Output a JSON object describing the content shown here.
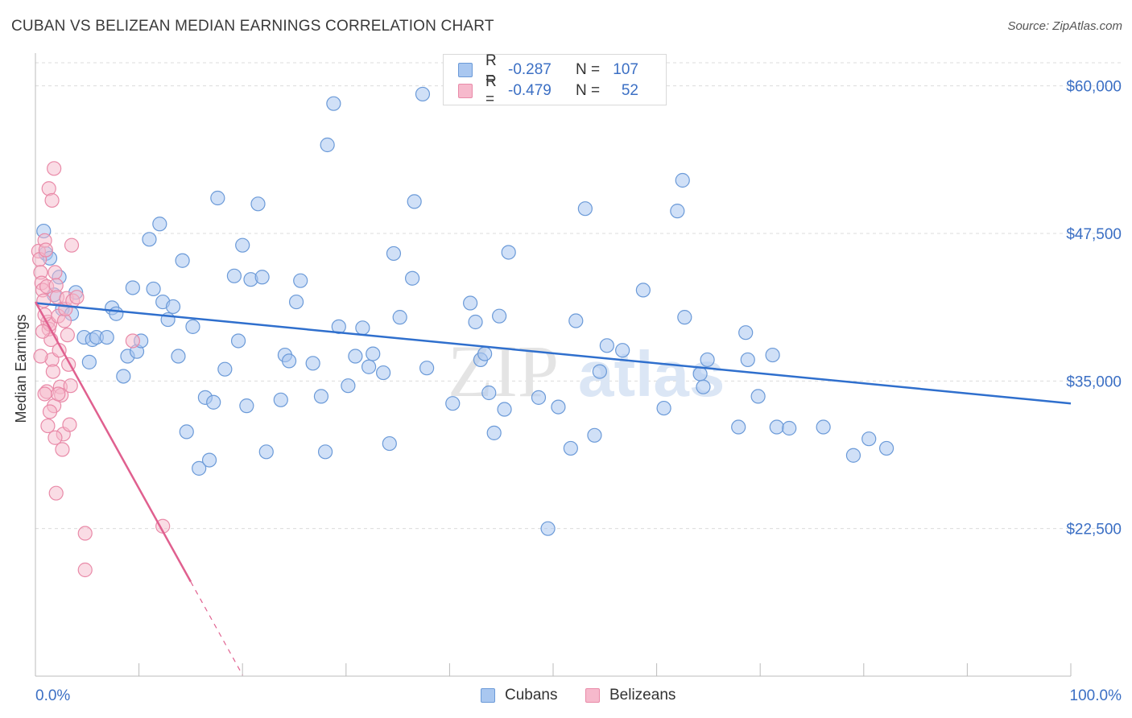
{
  "header": {
    "title": "CUBAN VS BELIZEAN MEDIAN EARNINGS CORRELATION CHART",
    "source": "Source: ZipAtlas.com"
  },
  "legend": {
    "series": [
      {
        "name": "Cubans",
        "r_label": "R =",
        "r_value": "-0.287",
        "n_label": "N =",
        "n_value": "107"
      },
      {
        "name": "Belizeans",
        "r_label": "R =",
        "r_value": "-0.479",
        "n_label": "N =",
        "n_value": "52"
      }
    ]
  },
  "watermark": {
    "zip": "ZIP",
    "atlas": "atlas"
  },
  "colors": {
    "cubans_fill": "#a9c7f0",
    "cubans_stroke": "#6b9ad8",
    "cubans_line": "#2f6fcd",
    "belizeans_fill": "#f6b9cc",
    "belizeans_stroke": "#e98aa8",
    "belizeans_line": "#e0608f",
    "axis_label": "#3b6fc4",
    "grid": "#dcdcdc"
  },
  "chart_data": {
    "type": "scatter",
    "title": "CUBAN VS BELIZEAN MEDIAN EARNINGS CORRELATION CHART",
    "xlabel": "",
    "ylabel": "Median Earnings",
    "xlim": [
      0,
      100
    ],
    "ylim": [
      10000,
      62500
    ],
    "x_tick_labels": [
      "0.0%",
      "100.0%"
    ],
    "y_ticks": [
      22500,
      35000,
      47500,
      60000
    ],
    "y_tick_labels": [
      "$22,500",
      "$35,000",
      "$47,500",
      "$60,000"
    ],
    "grid": true,
    "series": [
      {
        "name": "Cubans",
        "trend": {
          "x": [
            0,
            100
          ],
          "y": [
            41600,
            33100
          ]
        },
        "points": [
          [
            0.8,
            47700
          ],
          [
            1.0,
            45800
          ],
          [
            1.4,
            45400
          ],
          [
            2.3,
            43800
          ],
          [
            1.8,
            42300
          ],
          [
            3.9,
            42500
          ],
          [
            2.6,
            41100
          ],
          [
            3.5,
            40700
          ],
          [
            4.7,
            38700
          ],
          [
            5.5,
            38500
          ],
          [
            5.9,
            38700
          ],
          [
            5.2,
            36600
          ],
          [
            6.9,
            38700
          ],
          [
            7.4,
            41200
          ],
          [
            7.8,
            40700
          ],
          [
            8.5,
            35400
          ],
          [
            8.9,
            37100
          ],
          [
            9.4,
            42900
          ],
          [
            9.8,
            37500
          ],
          [
            10.2,
            38400
          ],
          [
            11.0,
            47000
          ],
          [
            12.0,
            48300
          ],
          [
            12.3,
            41700
          ],
          [
            11.4,
            42800
          ],
          [
            12.8,
            40200
          ],
          [
            13.3,
            41300
          ],
          [
            13.8,
            37100
          ],
          [
            14.2,
            45200
          ],
          [
            14.6,
            30700
          ],
          [
            15.2,
            39600
          ],
          [
            15.8,
            27600
          ],
          [
            16.4,
            33600
          ],
          [
            16.8,
            28300
          ],
          [
            17.2,
            33200
          ],
          [
            17.6,
            50500
          ],
          [
            18.3,
            36000
          ],
          [
            19.2,
            43900
          ],
          [
            19.6,
            38400
          ],
          [
            20.0,
            46500
          ],
          [
            20.4,
            32900
          ],
          [
            20.8,
            43600
          ],
          [
            21.5,
            50000
          ],
          [
            21.9,
            43800
          ],
          [
            22.3,
            29000
          ],
          [
            23.7,
            33400
          ],
          [
            24.1,
            37200
          ],
          [
            24.5,
            36700
          ],
          [
            25.2,
            41700
          ],
          [
            25.6,
            43500
          ],
          [
            26.8,
            36500
          ],
          [
            27.6,
            33700
          ],
          [
            28.0,
            29000
          ],
          [
            28.2,
            55000
          ],
          [
            28.8,
            58500
          ],
          [
            29.3,
            39600
          ],
          [
            30.2,
            34600
          ],
          [
            30.9,
            37100
          ],
          [
            31.6,
            39500
          ],
          [
            32.2,
            36200
          ],
          [
            32.6,
            37300
          ],
          [
            33.6,
            35700
          ],
          [
            34.2,
            29700
          ],
          [
            34.6,
            45800
          ],
          [
            35.2,
            40400
          ],
          [
            36.4,
            43700
          ],
          [
            36.6,
            50200
          ],
          [
            37.4,
            59300
          ],
          [
            37.8,
            36100
          ],
          [
            40.3,
            33100
          ],
          [
            42.0,
            41600
          ],
          [
            42.5,
            40000
          ],
          [
            43.0,
            36800
          ],
          [
            43.4,
            37300
          ],
          [
            43.8,
            34000
          ],
          [
            44.3,
            30600
          ],
          [
            44.8,
            40500
          ],
          [
            45.3,
            32600
          ],
          [
            45.7,
            45900
          ],
          [
            48.6,
            33600
          ],
          [
            49.5,
            22500
          ],
          [
            50.5,
            32800
          ],
          [
            51.7,
            29300
          ],
          [
            52.2,
            40100
          ],
          [
            53.1,
            49600
          ],
          [
            54.0,
            30400
          ],
          [
            54.5,
            35800
          ],
          [
            55.2,
            38000
          ],
          [
            56.7,
            37600
          ],
          [
            58.7,
            42700
          ],
          [
            60.7,
            32700
          ],
          [
            62.0,
            49400
          ],
          [
            62.5,
            52000
          ],
          [
            62.7,
            40400
          ],
          [
            64.2,
            35600
          ],
          [
            64.5,
            34500
          ],
          [
            64.9,
            36800
          ],
          [
            67.9,
            31100
          ],
          [
            68.6,
            39100
          ],
          [
            68.8,
            36800
          ],
          [
            69.8,
            33700
          ],
          [
            71.2,
            37200
          ],
          [
            71.6,
            31100
          ],
          [
            76.1,
            31100
          ],
          [
            80.5,
            30100
          ],
          [
            79.0,
            28700
          ],
          [
            82.2,
            29300
          ],
          [
            72.8,
            31000
          ]
        ]
      },
      {
        "name": "Belizeans",
        "trend": {
          "x": [
            0,
            15
          ],
          "y": [
            41700,
            18000
          ]
        },
        "trend_dashed": {
          "x": [
            15,
            20
          ],
          "y": [
            18000,
            10100
          ]
        },
        "points": [
          [
            0.3,
            46000
          ],
          [
            0.4,
            45300
          ],
          [
            0.5,
            44200
          ],
          [
            0.6,
            43300
          ],
          [
            0.7,
            42700
          ],
          [
            0.8,
            41800
          ],
          [
            0.9,
            46900
          ],
          [
            1.0,
            46100
          ],
          [
            1.1,
            43000
          ],
          [
            1.2,
            40000
          ],
          [
            1.3,
            39400
          ],
          [
            1.4,
            39800
          ],
          [
            1.5,
            38500
          ],
          [
            1.6,
            36800
          ],
          [
            1.7,
            35800
          ],
          [
            1.8,
            32900
          ],
          [
            1.9,
            44200
          ],
          [
            2.0,
            43100
          ],
          [
            2.1,
            42100
          ],
          [
            2.2,
            40500
          ],
          [
            2.3,
            37600
          ],
          [
            2.4,
            34500
          ],
          [
            2.5,
            33800
          ],
          [
            2.6,
            29200
          ],
          [
            2.7,
            30500
          ],
          [
            2.8,
            40100
          ],
          [
            2.9,
            41100
          ],
          [
            3.0,
            42000
          ],
          [
            3.1,
            38900
          ],
          [
            3.2,
            36400
          ],
          [
            3.3,
            31300
          ],
          [
            3.4,
            34600
          ],
          [
            3.5,
            46500
          ],
          [
            3.6,
            41800
          ],
          [
            4.0,
            42100
          ],
          [
            1.3,
            51300
          ],
          [
            1.6,
            50300
          ],
          [
            1.8,
            53000
          ],
          [
            1.9,
            30200
          ],
          [
            2.0,
            25500
          ],
          [
            4.8,
            22100
          ],
          [
            4.8,
            19000
          ],
          [
            12.3,
            22700
          ],
          [
            9.4,
            38400
          ],
          [
            1.1,
            34100
          ],
          [
            1.4,
            32400
          ],
          [
            1.2,
            31200
          ],
          [
            0.9,
            33900
          ],
          [
            0.5,
            37100
          ],
          [
            0.7,
            39200
          ],
          [
            2.2,
            33900
          ],
          [
            0.9,
            40600
          ]
        ]
      }
    ]
  }
}
